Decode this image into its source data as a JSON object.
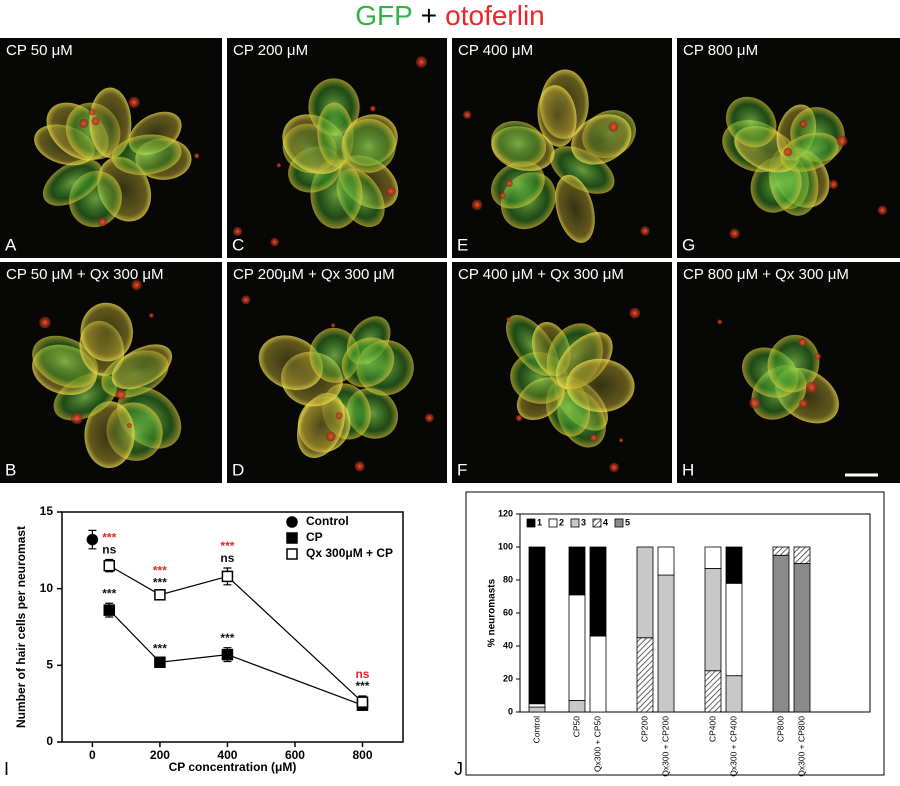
{
  "figure_title": {
    "part1": "GFP",
    "part2": "+",
    "part3": "otoferlin"
  },
  "panels": [
    {
      "caption": "CP 50 μM",
      "letter": "A"
    },
    {
      "caption": "CP 200 μM",
      "letter": "C"
    },
    {
      "caption": "CP 400 μM",
      "letter": "E"
    },
    {
      "caption": "CP 800 μM",
      "letter": "G"
    },
    {
      "caption": "CP 50 μM + Qx 300 μM",
      "letter": "B"
    },
    {
      "caption": "CP 200μM + Qx 300 μM",
      "letter": "D"
    },
    {
      "caption": "CP 400 μM + Qx 300 μM",
      "letter": "F"
    },
    {
      "caption": "CP 800 μM + Qx 300 μM",
      "letter": "H"
    }
  ],
  "chart_data": [
    {
      "type": "line",
      "panel_letter": "I",
      "xlabel": "CP concentration (μM)",
      "ylabel": "Number of hair cells per neuromast",
      "xlim": [
        -90,
        920
      ],
      "xticks": [
        0,
        200,
        400,
        600,
        800
      ],
      "ylim": [
        0,
        15
      ],
      "yticks": [
        0,
        5,
        10,
        15
      ],
      "series": [
        {
          "name": "Control",
          "marker": "circle",
          "filled": true,
          "color": "#000000",
          "x": [
            0
          ],
          "values": [
            13.2
          ],
          "errors": [
            0.6
          ]
        },
        {
          "name": "CP",
          "marker": "square",
          "filled": true,
          "color": "#000000",
          "x": [
            50,
            200,
            400,
            800
          ],
          "values": [
            8.6,
            5.2,
            5.7,
            2.4
          ],
          "errors": [
            0.45,
            0.25,
            0.45,
            0.3
          ],
          "annotations": [
            [
              {
                "text": "***",
                "color": "#111111"
              }
            ],
            [
              {
                "text": "***",
                "color": "#111111"
              }
            ],
            [
              {
                "text": "***",
                "color": "#111111"
              }
            ],
            null
          ]
        },
        {
          "name": "Qx 300μM + CP",
          "marker": "square",
          "filled": false,
          "color": "#000000",
          "x": [
            50,
            200,
            400,
            800
          ],
          "values": [
            11.5,
            9.6,
            10.8,
            2.6
          ],
          "errors": [
            0.4,
            0.15,
            0.55,
            0.4
          ],
          "annotations": [
            [
              {
                "text": "***",
                "color": "#e3262b"
              },
              {
                "text": "ns",
                "color": "#111111"
              }
            ],
            [
              {
                "text": "***",
                "color": "#e3262b"
              },
              {
                "text": "***",
                "color": "#111111"
              }
            ],
            [
              {
                "text": "***",
                "color": "#e3262b"
              },
              {
                "text": "ns",
                "color": "#111111"
              }
            ],
            [
              {
                "text": "ns",
                "color": "#e3262b"
              },
              {
                "text": "***",
                "color": "#111111"
              }
            ]
          ]
        }
      ]
    },
    {
      "type": "bar",
      "stacked": true,
      "panel_letter": "J",
      "ylabel": "% neuromasts",
      "ylim": [
        0,
        120
      ],
      "yticks": [
        0,
        20,
        40,
        60,
        80,
        100,
        120
      ],
      "categories": [
        "Control",
        "CP50",
        "Qx300 + CP50",
        "CP200",
        "Qx300 + CP200",
        "CP400",
        "Qx300 + CP400",
        "CP800",
        "Qx300 + CP800"
      ],
      "series": [
        {
          "name": "5",
          "color": "#8a8a8a",
          "hatch": false,
          "values": [
            0,
            0,
            0,
            0,
            0,
            0,
            0,
            95,
            90
          ]
        },
        {
          "name": "4",
          "color": "#ffffff",
          "hatch": true,
          "values": [
            0,
            0,
            0,
            45,
            0,
            25,
            0,
            5,
            10
          ]
        },
        {
          "name": "3",
          "color": "#c8c8c8",
          "hatch": false,
          "values": [
            3,
            7,
            0,
            55,
            83,
            62,
            22,
            0,
            0
          ]
        },
        {
          "name": "2",
          "color": "#ffffff",
          "hatch": false,
          "values": [
            2,
            64,
            46,
            0,
            17,
            13,
            56,
            0,
            0
          ]
        },
        {
          "name": "1",
          "color": "#000000",
          "hatch": false,
          "values": [
            95,
            29,
            54,
            0,
            0,
            0,
            22,
            0,
            0
          ]
        }
      ]
    }
  ]
}
